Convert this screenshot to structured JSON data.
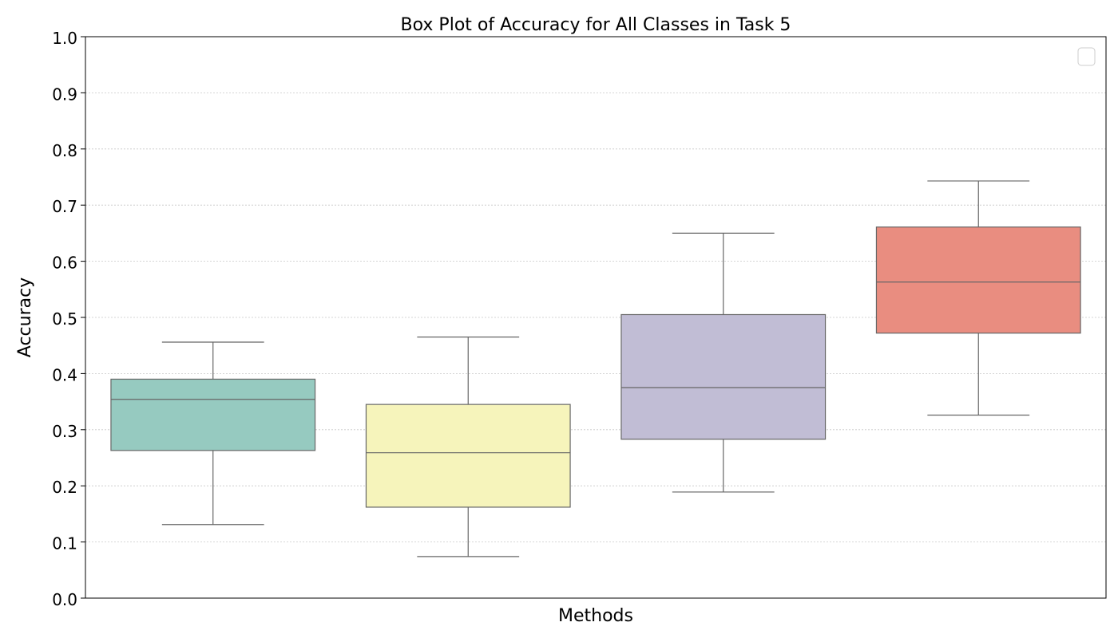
{
  "chart_data": {
    "type": "box",
    "title": "Box Plot of Accuracy for All Classes in Task 5",
    "xlabel": "Methods",
    "ylabel": "Accuracy",
    "ylim": [
      0,
      1.0
    ],
    "yticks": [
      "0.0",
      "0.1",
      "0.2",
      "0.3",
      "0.4",
      "0.5",
      "0.6",
      "0.7",
      "0.8",
      "0.9",
      "1.0"
    ],
    "grid": "y-dotted",
    "legend": "top-right (empty)",
    "boxes": [
      {
        "min": 0.131,
        "q1": 0.263,
        "median": 0.354,
        "q3": 0.39,
        "max": 0.456,
        "color": "#96cac0"
      },
      {
        "min": 0.074,
        "q1": 0.162,
        "median": 0.259,
        "q3": 0.345,
        "max": 0.465,
        "color": "#f6f4bb"
      },
      {
        "min": 0.189,
        "q1": 0.283,
        "median": 0.375,
        "q3": 0.505,
        "max": 0.65,
        "color": "#c1bdd5"
      },
      {
        "min": 0.326,
        "q1": 0.472,
        "median": 0.563,
        "q3": 0.661,
        "max": 0.743,
        "color": "#e98d80"
      }
    ]
  }
}
